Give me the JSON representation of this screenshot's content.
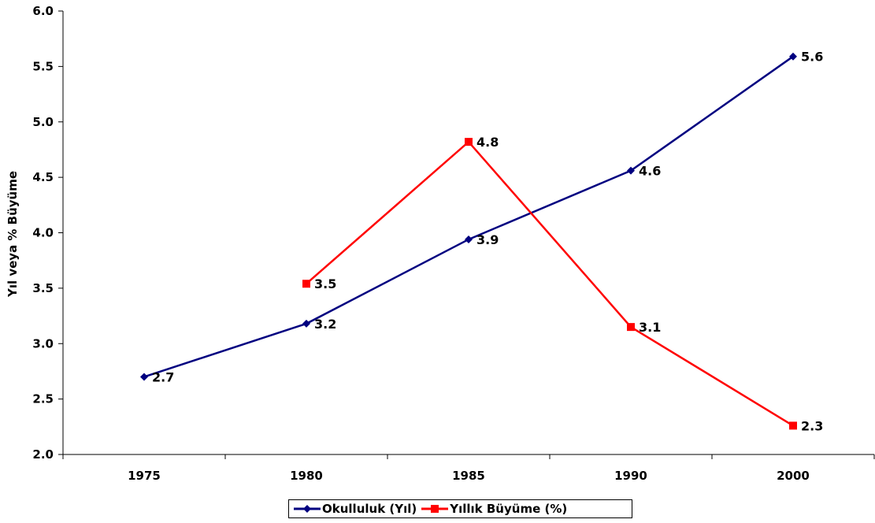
{
  "chart_data": {
    "type": "line",
    "categories": [
      "1975",
      "1980",
      "1985",
      "1990",
      "2000"
    ],
    "ylabel": "Yıl veya % Büyüme",
    "xlabel": "",
    "title": "",
    "ylim": [
      2.0,
      6.0
    ],
    "yticks": [
      "2.0",
      "2.5",
      "3.0",
      "3.5",
      "4.0",
      "4.5",
      "5.0",
      "5.5",
      "6.0"
    ],
    "grid": false,
    "legend_position": "bottom",
    "series": [
      {
        "name": "Okulluluk (Yıl)",
        "color": "#000080",
        "marker": "diamond",
        "values": [
          2.7,
          3.18,
          3.94,
          4.56,
          5.59
        ],
        "labels": [
          "2.7",
          "3.2",
          "3.9",
          "4.6",
          "5.6"
        ]
      },
      {
        "name": "Yıllık Büyüme (%)",
        "color": "#ff0000",
        "marker": "square",
        "values": [
          null,
          3.54,
          4.82,
          3.15,
          2.26
        ],
        "labels": [
          "",
          "3.5",
          "4.8",
          "3.1",
          "2.3"
        ]
      }
    ]
  }
}
